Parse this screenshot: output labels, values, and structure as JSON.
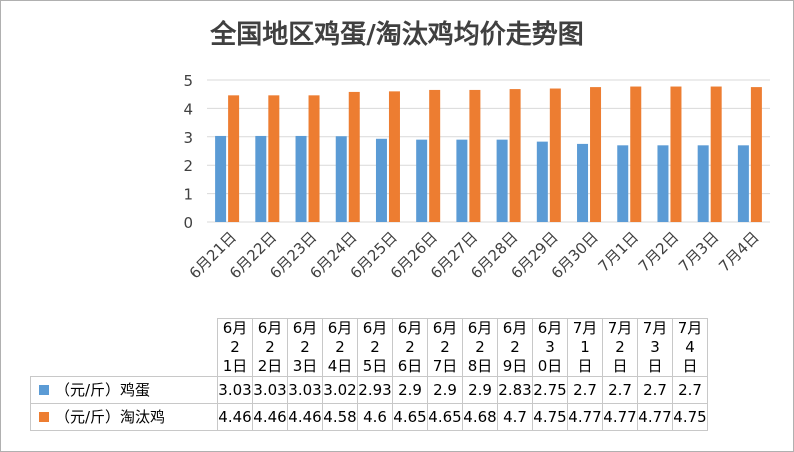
{
  "chart_data": {
    "type": "bar",
    "title": "全国地区鸡蛋/淘汰鸡均价走势图",
    "categories": [
      "6月21日",
      "6月22日",
      "6月23日",
      "6月24日",
      "6月25日",
      "6月26日",
      "6月27日",
      "6月28日",
      "6月29日",
      "6月30日",
      "7月1日",
      "7月2日",
      "7月3日",
      "7月4日"
    ],
    "table_headers": [
      [
        "6月2",
        "1日"
      ],
      [
        "6月2",
        "2日"
      ],
      [
        "6月2",
        "3日"
      ],
      [
        "6月2",
        "4日"
      ],
      [
        "6月2",
        "5日"
      ],
      [
        "6月2",
        "6日"
      ],
      [
        "6月2",
        "7日"
      ],
      [
        "6月2",
        "8日"
      ],
      [
        "6月2",
        "9日"
      ],
      [
        "6月3",
        "0日"
      ],
      [
        "7月1",
        "日"
      ],
      [
        "7月2",
        "日"
      ],
      [
        "7月3",
        "日"
      ],
      [
        "7月4",
        "日"
      ]
    ],
    "series": [
      {
        "name": "（元/斤）鸡蛋",
        "color": "#5b9bd5",
        "values": [
          3.03,
          3.03,
          3.03,
          3.02,
          2.93,
          2.9,
          2.9,
          2.9,
          2.83,
          2.75,
          2.7,
          2.7,
          2.7,
          2.7
        ],
        "labels": [
          "3.03",
          "3.03",
          "3.03",
          "3.02",
          "2.93",
          "2.9",
          "2.9",
          "2.9",
          "2.83",
          "2.75",
          "2.7",
          "2.7",
          "2.7",
          "2.7"
        ]
      },
      {
        "name": "（元/斤）淘汰鸡",
        "color": "#ed7d31",
        "values": [
          4.46,
          4.46,
          4.46,
          4.58,
          4.6,
          4.65,
          4.65,
          4.68,
          4.7,
          4.75,
          4.77,
          4.77,
          4.77,
          4.75
        ],
        "labels": [
          "4.46",
          "4.46",
          "4.46",
          "4.58",
          "4.6",
          "4.65",
          "4.65",
          "4.68",
          "4.7",
          "4.75",
          "4.77",
          "4.77",
          "4.77",
          "4.75"
        ]
      }
    ],
    "ylim": [
      0,
      5
    ],
    "yticks": [
      0,
      1,
      2,
      3,
      4,
      5
    ],
    "grid": true,
    "legend": "data-table"
  }
}
